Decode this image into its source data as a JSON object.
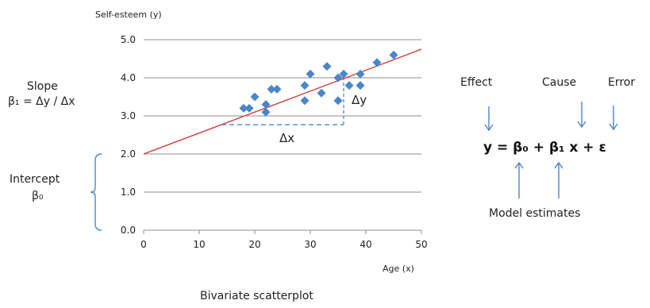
{
  "chart_data": {
    "type": "scatter",
    "title": "Bivariate scatterplot",
    "ylabel": "Self-esteem  (y)",
    "xlabel": "Age  (x)",
    "xlim": [
      0,
      50
    ],
    "ylim": [
      0,
      5
    ],
    "x_ticks": [
      "0",
      "10",
      "20",
      "30",
      "40",
      "50"
    ],
    "y_ticks": [
      "0.0",
      "1.0",
      "2.0",
      "3.0",
      "4.0",
      "5.0"
    ],
    "grid": "horizontal",
    "points": [
      {
        "x": 18,
        "y": 3.2
      },
      {
        "x": 19,
        "y": 3.2
      },
      {
        "x": 20,
        "y": 3.5
      },
      {
        "x": 22,
        "y": 3.1
      },
      {
        "x": 22,
        "y": 3.3
      },
      {
        "x": 23,
        "y": 3.7
      },
      {
        "x": 24,
        "y": 3.7
      },
      {
        "x": 29,
        "y": 3.4
      },
      {
        "x": 29,
        "y": 3.8
      },
      {
        "x": 30,
        "y": 4.1
      },
      {
        "x": 32,
        "y": 3.6
      },
      {
        "x": 33,
        "y": 4.3
      },
      {
        "x": 35,
        "y": 3.4
      },
      {
        "x": 35,
        "y": 4.0
      },
      {
        "x": 36,
        "y": 4.1
      },
      {
        "x": 37,
        "y": 3.8
      },
      {
        "x": 39,
        "y": 3.8
      },
      {
        "x": 39,
        "y": 4.1
      },
      {
        "x": 42,
        "y": 4.4
      },
      {
        "x": 45,
        "y": 4.6
      }
    ],
    "regression_line": {
      "intercept": 2.0,
      "slope": 0.055,
      "color": "#d0524e"
    },
    "point_color": "#4a86c8",
    "delta_triangle": {
      "x_start": 14,
      "x_end": 36,
      "y_base": 2.77,
      "dx_label": "Δx",
      "dy_label": "Δy"
    }
  },
  "annotations": {
    "slope_title": "Slope",
    "slope_formula": "β₁ = Δy / Δx",
    "intercept_title": "Intercept",
    "intercept_symbol": "β₀"
  },
  "equation": {
    "text": "y = β₀ + β₁ x + ε",
    "effect_label": "Effect",
    "cause_label": "Cause",
    "error_label": "Error",
    "model_label": "Model estimates",
    "arrow_color": "#4a86c8"
  }
}
